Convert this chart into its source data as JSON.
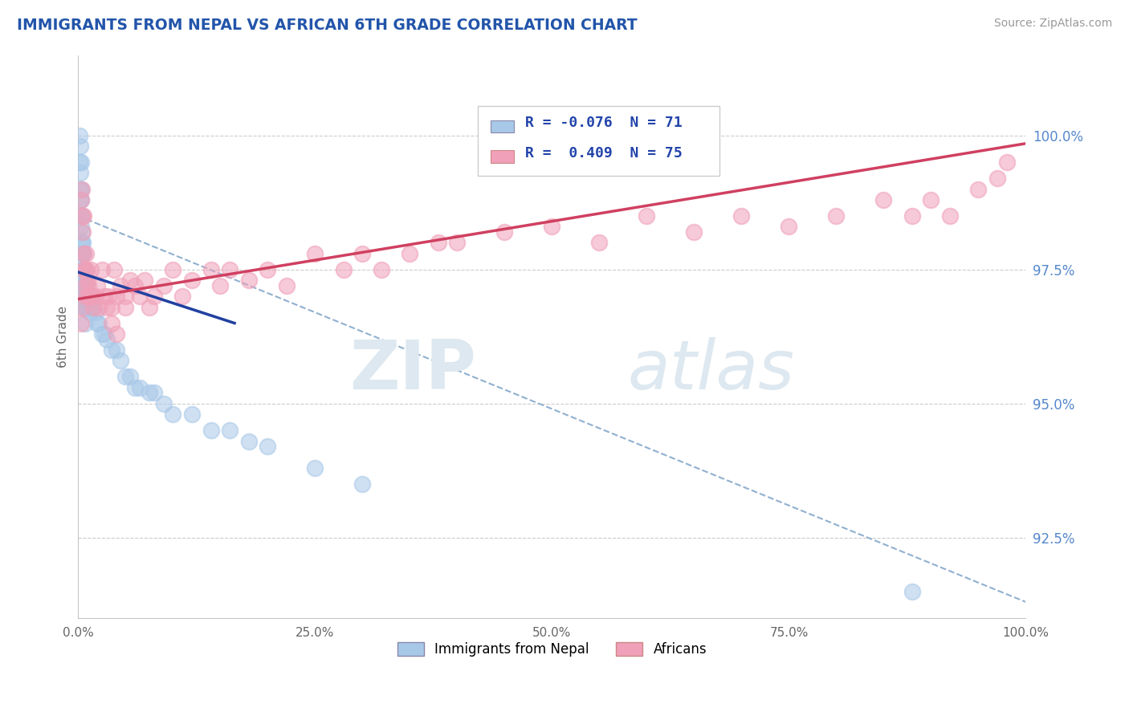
{
  "title": "IMMIGRANTS FROM NEPAL VS AFRICAN 6TH GRADE CORRELATION CHART",
  "source_text": "Source: ZipAtlas.com",
  "ylabel": "6th Grade",
  "legend_labels": [
    "Immigrants from Nepal",
    "Africans"
  ],
  "r_nepal": -0.076,
  "n_nepal": 71,
  "r_african": 0.409,
  "n_african": 75,
  "xlim": [
    0.0,
    1.0
  ],
  "ylim": [
    91.0,
    101.5
  ],
  "right_yticks": [
    92.5,
    95.0,
    97.5,
    100.0
  ],
  "nepal_color": "#a8c8e8",
  "african_color": "#f0a0b8",
  "nepal_line_color": "#2040a0",
  "african_line_color": "#d04060",
  "dashed_line_color": "#90b0d0",
  "watermark_zip": "ZIP",
  "watermark_atlas": "atlas",
  "nepal_x": [
    0.001,
    0.001,
    0.002,
    0.002,
    0.002,
    0.002,
    0.003,
    0.003,
    0.003,
    0.003,
    0.003,
    0.003,
    0.004,
    0.004,
    0.004,
    0.004,
    0.004,
    0.004,
    0.004,
    0.005,
    0.005,
    0.005,
    0.005,
    0.005,
    0.005,
    0.006,
    0.006,
    0.006,
    0.006,
    0.007,
    0.007,
    0.007,
    0.007,
    0.007,
    0.008,
    0.008,
    0.008,
    0.009,
    0.009,
    0.01,
    0.01,
    0.011,
    0.012,
    0.013,
    0.015,
    0.016,
    0.018,
    0.02,
    0.022,
    0.025,
    0.028,
    0.03,
    0.035,
    0.04,
    0.045,
    0.05,
    0.055,
    0.06,
    0.065,
    0.075,
    0.08,
    0.09,
    0.1,
    0.12,
    0.14,
    0.16,
    0.18,
    0.2,
    0.25,
    0.3,
    0.88
  ],
  "nepal_y": [
    100.0,
    99.5,
    99.8,
    99.3,
    99.0,
    98.8,
    99.5,
    99.0,
    98.8,
    98.5,
    98.3,
    98.0,
    98.5,
    98.2,
    98.0,
    97.8,
    97.5,
    97.3,
    97.0,
    98.0,
    97.8,
    97.5,
    97.3,
    97.0,
    96.8,
    97.8,
    97.5,
    97.2,
    97.0,
    97.5,
    97.2,
    97.0,
    96.8,
    96.5,
    97.3,
    97.0,
    96.8,
    97.2,
    97.0,
    97.0,
    96.8,
    96.8,
    96.7,
    96.8,
    97.0,
    96.8,
    96.7,
    96.5,
    96.5,
    96.3,
    96.3,
    96.2,
    96.0,
    96.0,
    95.8,
    95.5,
    95.5,
    95.3,
    95.3,
    95.2,
    95.2,
    95.0,
    94.8,
    94.8,
    94.5,
    94.5,
    94.3,
    94.2,
    93.8,
    93.5,
    91.5
  ],
  "african_x": [
    0.003,
    0.004,
    0.005,
    0.005,
    0.006,
    0.006,
    0.006,
    0.007,
    0.007,
    0.008,
    0.008,
    0.009,
    0.01,
    0.01,
    0.011,
    0.012,
    0.013,
    0.014,
    0.015,
    0.016,
    0.018,
    0.02,
    0.022,
    0.025,
    0.028,
    0.03,
    0.032,
    0.035,
    0.038,
    0.04,
    0.045,
    0.05,
    0.055,
    0.06,
    0.065,
    0.07,
    0.075,
    0.08,
    0.09,
    0.1,
    0.11,
    0.12,
    0.14,
    0.15,
    0.16,
    0.18,
    0.2,
    0.22,
    0.25,
    0.28,
    0.3,
    0.32,
    0.35,
    0.38,
    0.4,
    0.45,
    0.5,
    0.55,
    0.6,
    0.65,
    0.7,
    0.75,
    0.8,
    0.85,
    0.88,
    0.9,
    0.92,
    0.95,
    0.97,
    0.98,
    0.003,
    0.004,
    0.035,
    0.04,
    0.05
  ],
  "african_y": [
    98.8,
    99.0,
    98.5,
    98.2,
    97.8,
    98.5,
    97.5,
    97.5,
    97.2,
    97.8,
    97.0,
    97.5,
    97.3,
    97.0,
    97.2,
    97.0,
    97.5,
    97.0,
    97.0,
    96.8,
    97.0,
    97.2,
    96.8,
    97.5,
    97.0,
    96.8,
    97.0,
    96.8,
    97.5,
    97.0,
    97.2,
    97.0,
    97.3,
    97.2,
    97.0,
    97.3,
    96.8,
    97.0,
    97.2,
    97.5,
    97.0,
    97.3,
    97.5,
    97.2,
    97.5,
    97.3,
    97.5,
    97.2,
    97.8,
    97.5,
    97.8,
    97.5,
    97.8,
    98.0,
    98.0,
    98.2,
    98.3,
    98.0,
    98.5,
    98.2,
    98.5,
    98.3,
    98.5,
    98.8,
    98.5,
    98.8,
    98.5,
    99.0,
    99.2,
    99.5,
    96.5,
    96.8,
    96.5,
    96.3,
    96.8
  ],
  "nepal_line_x": [
    0.0,
    0.165
  ],
  "nepal_line_y": [
    97.45,
    96.5
  ],
  "african_line_x": [
    0.0,
    1.0
  ],
  "african_line_y": [
    96.95,
    99.85
  ],
  "dashed_line_x": [
    0.0,
    1.0
  ],
  "dashed_line_y": [
    98.5,
    91.3
  ]
}
